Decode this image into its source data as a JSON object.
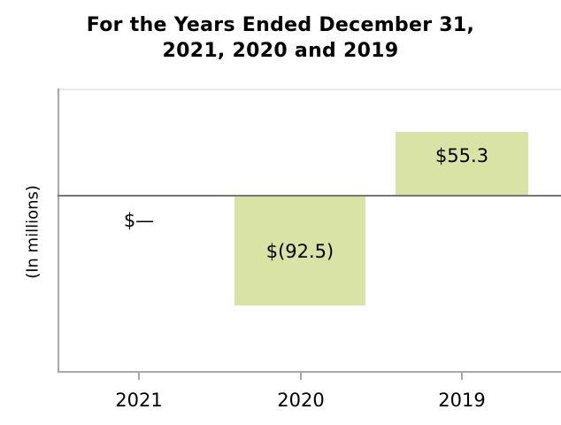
{
  "title": {
    "line1": "For the Years Ended December 31,",
    "line2": "2021, 2020 and 2019"
  },
  "axes": {
    "y_label": "(In millions)"
  },
  "colors": {
    "bar_fill": "#d9e3a6",
    "spine": "#a8a8a8",
    "top_spine": "#eaeaea",
    "baseline": "#767676",
    "text": "#000000"
  },
  "chart_data": {
    "type": "bar",
    "title": "For the Years Ended December 31, 2021, 2020 and 2019",
    "categories": [
      "2021",
      "2020",
      "2019"
    ],
    "values": [
      0,
      -92.5,
      55.3
    ],
    "value_labels": [
      "$—",
      "$(92.5)",
      "$55.3"
    ],
    "xlabel": "",
    "ylabel": "(In millions)",
    "ylim": [
      -150,
      95
    ],
    "yticks": [],
    "baseline": 0,
    "grid": false,
    "legend_position": "none",
    "bar_color": "#d9e3a6",
    "label_placement": "center-of-bar, zero value labeled below baseline"
  }
}
